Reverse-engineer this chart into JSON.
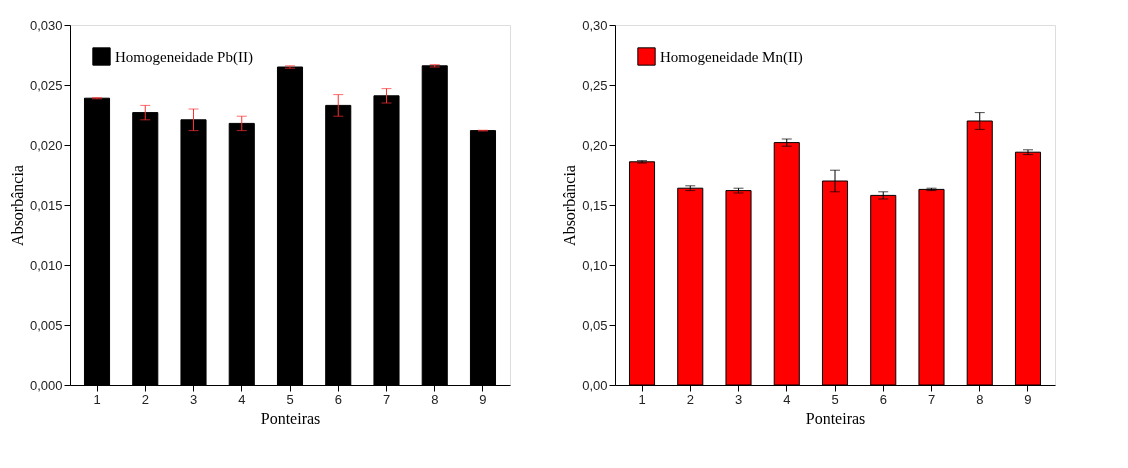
{
  "chart_data": [
    {
      "type": "bar",
      "xlabel": "Ponteiras",
      "ylabel": "Absorbância",
      "categories": [
        "1",
        "2",
        "3",
        "4",
        "5",
        "6",
        "7",
        "8",
        "9"
      ],
      "series": [
        {
          "name": "Homogeneidade Pb(II)",
          "color": "#000000",
          "values": [
            0.0239,
            0.0227,
            0.0221,
            0.0218,
            0.0265,
            0.0233,
            0.0241,
            0.0266,
            0.0212
          ],
          "errors": [
            5e-05,
            0.0006,
            0.0009,
            0.0006,
            0.0001,
            0.0009,
            0.0006,
            0.0001,
            3e-05
          ]
        }
      ],
      "ylim": [
        0,
        0.03
      ],
      "yticks": [
        {
          "value": 0,
          "label": "0,000"
        },
        {
          "value": 0.005,
          "label": "0,005"
        },
        {
          "value": 0.01,
          "label": "0,010"
        },
        {
          "value": 0.015,
          "label": "0,015"
        },
        {
          "value": 0.02,
          "label": "0,020"
        },
        {
          "value": 0.025,
          "label": "0,025"
        },
        {
          "value": 0.03,
          "label": "0,030"
        }
      ],
      "legend": "top left",
      "grid": false
    },
    {
      "type": "bar",
      "xlabel": "Ponteiras",
      "ylabel": "Absorbância",
      "categories": [
        "1",
        "2",
        "3",
        "4",
        "5",
        "6",
        "7",
        "8",
        "9"
      ],
      "series": [
        {
          "name": "Homogeneidade Mn(II)",
          "color": "#ff0000",
          "values": [
            0.186,
            0.164,
            0.162,
            0.202,
            0.17,
            0.158,
            0.163,
            0.22,
            0.194
          ],
          "errors": [
            0.001,
            0.002,
            0.002,
            0.003,
            0.009,
            0.003,
            0.001,
            0.007,
            0.002
          ]
        }
      ],
      "ylim": [
        0,
        0.3
      ],
      "yticks": [
        {
          "value": 0,
          "label": "0,00"
        },
        {
          "value": 0.05,
          "label": "0,05"
        },
        {
          "value": 0.1,
          "label": "0,10"
        },
        {
          "value": 0.15,
          "label": "0,15"
        },
        {
          "value": 0.2,
          "label": "0,20"
        },
        {
          "value": 0.25,
          "label": "0,25"
        },
        {
          "value": 0.3,
          "label": "0,30"
        }
      ],
      "legend": "top left",
      "grid": false
    }
  ]
}
